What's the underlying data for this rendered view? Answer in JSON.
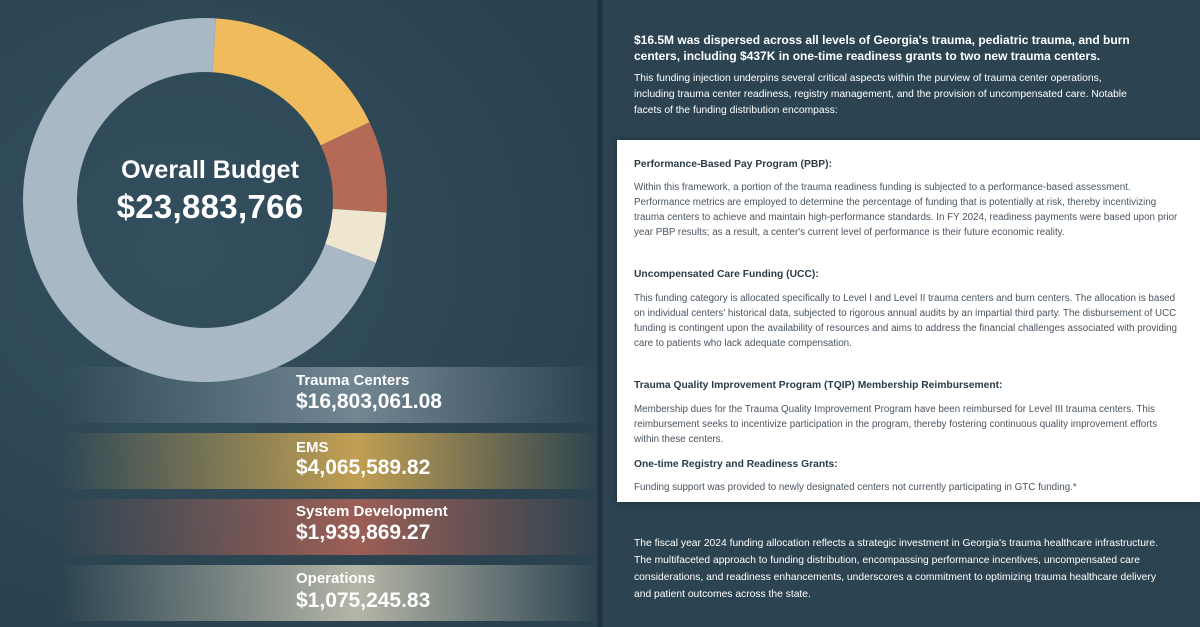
{
  "budget": {
    "title": "Overall Budget",
    "total": "$23,883,766"
  },
  "chart_data": {
    "type": "pie",
    "style": "donut",
    "title": "Overall Budget",
    "categories": [
      "Trauma Centers",
      "EMS",
      "System Development",
      "Operations"
    ],
    "values": [
      16803061.08,
      4065589.82,
      1939869.27,
      1075245.83
    ],
    "value_labels": [
      "$16,803,061.08",
      "$4,065,589.82",
      "$1,939,869.27",
      "$1,075,245.83"
    ],
    "colors": [
      "#a9b8c5",
      "#f0bb5c",
      "#b56a58",
      "#efe6d0"
    ]
  },
  "legend": [
    {
      "label": "Trauma Centers",
      "value": "$16,803,061.08",
      "color": "#a9b8c5"
    },
    {
      "label": "EMS",
      "value": "$4,065,589.82",
      "color": "#e6b552"
    },
    {
      "label": "System Development",
      "value": "$1,939,869.27",
      "color": "#b86556"
    },
    {
      "label": "Operations",
      "value": "$1,075,245.83",
      "color": "#e3dcc4"
    }
  ],
  "intro": {
    "bold": "$16.5M was dispersed across all levels of Georgia's trauma, pediatric trauma, and burn centers, including $437K in one-time readiness grants to two new trauma centers.",
    "text": "This funding injection underpins several critical aspects within the purview of trauma center operations, including trauma center readiness, registry management, and the provision of uncompensated care. Notable facets of the funding distribution encompass:"
  },
  "sections": [
    {
      "heading": "Performance-Based Pay Program (PBP):",
      "body": "Within this framework, a portion of the trauma readiness funding is subjected to a performance-based assessment. Performance metrics are employed to determine the percentage of funding that is potentially at risk, thereby incentivizing trauma centers to achieve and maintain high-performance standards. In FY 2024, readiness payments were based upon prior year PBP results; as a result, a center's current level of performance is their future economic reality."
    },
    {
      "heading": "Uncompensated Care Funding (UCC):",
      "body": "This funding category is allocated specifically to Level I and Level II trauma centers and burn centers. The allocation is based on individual centers' historical data, subjected to rigorous annual audits by an impartial third party. The disbursement of UCC funding is contingent upon the availability of resources and aims to address the financial challenges associated with providing care to patients who lack adequate compensation."
    },
    {
      "heading": "Trauma Quality Improvement Program (TQIP) Membership Reimbursement:",
      "body": "Membership dues for the Trauma Quality Improvement Program have been reimbursed for Level III trauma centers. This reimbursement seeks to incentivize participation in the program, thereby fostering continuous quality improvement efforts within these centers."
    },
    {
      "heading": "One-time Registry and Readiness Grants:",
      "body": "Funding support was provided to newly designated centers not currently participating in GTC funding.*"
    }
  ],
  "outro": "The fiscal year 2024 funding allocation reflects a strategic investment in Georgia's trauma healthcare infrastructure. The multifaceted approach to funding distribution, encompassing performance incentives, uncompensated care considerations, and readiness enhancements, underscores a commitment to optimizing trauma healthcare delivery and patient outcomes across the state."
}
